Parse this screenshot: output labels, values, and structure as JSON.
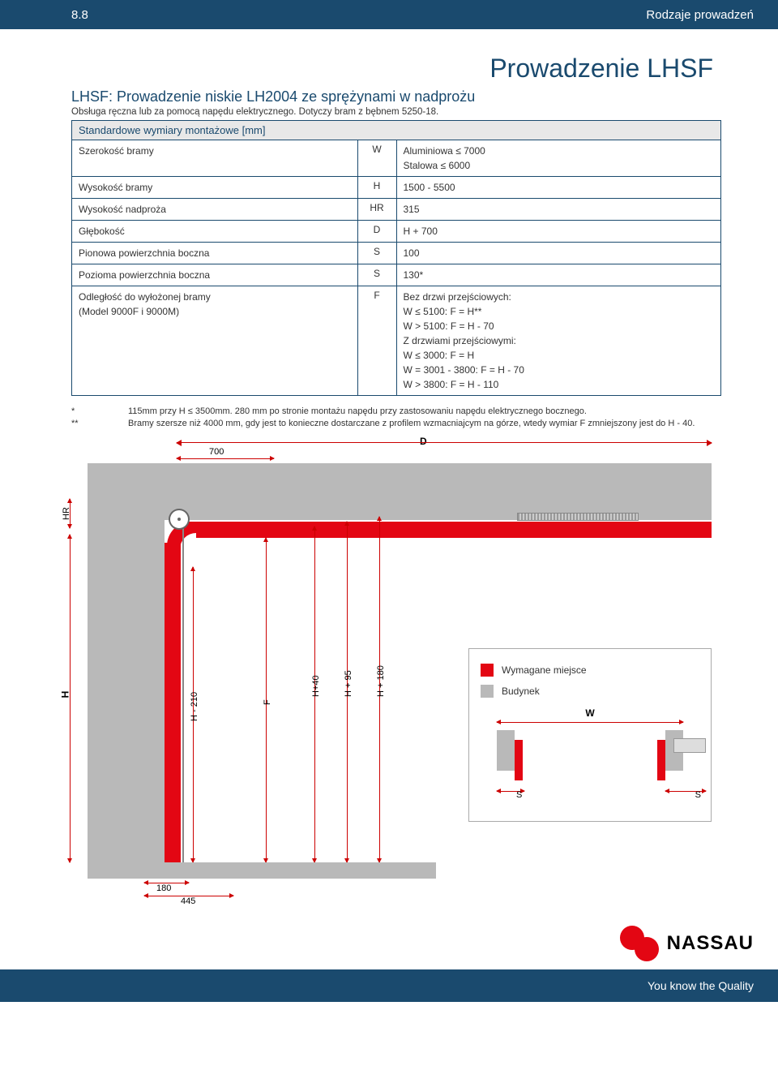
{
  "header": {
    "num": "8.8",
    "title": "Rodzaje prowadzeń"
  },
  "main_title": "Prowadzenie LHSF",
  "sub_title": "LHSF: Prowadzenie niskie LH2004 ze sprężynami w nadprożu",
  "desc": "Obsługa ręczna lub za pomocą napędu elektrycznego. Dotyczy bram z bębnem 5250-18.",
  "table_head": "Standardowe wymiary montażowe [mm]",
  "rows": [
    {
      "label": "Szerokość bramy",
      "sym": "W",
      "val": "Aluminiowa ≤ 7000\nStalowa ≤ 6000"
    },
    {
      "label": "Wysokość bramy",
      "sym": "H",
      "val": "1500 - 5500"
    },
    {
      "label": "Wysokość nadproża",
      "sym": "HR",
      "val": "315"
    },
    {
      "label": "Głębokość",
      "sym": "D",
      "val": "H + 700"
    },
    {
      "label": "Pionowa powierzchnia boczna",
      "sym": "S",
      "val": "100"
    },
    {
      "label": "Pozioma powierzchnia boczna",
      "sym": "S",
      "val": "130*"
    },
    {
      "label": "Odległość do wyłożonej bramy\n(Model 9000F i 9000M)",
      "sym": "F",
      "val": "Bez drzwi przejściowych:\nW ≤ 5100: F = H**\nW > 5100: F = H - 70\nZ drzwiami przejściowymi:\nW ≤ 3000: F = H\nW = 3001 - 3800: F = H - 70\nW > 3800: F = H - 110"
    }
  ],
  "notes": [
    {
      "ast": "*",
      "txt": "115mm przy H ≤ 3500mm. 280 mm po stronie montażu napędu przy zastosowaniu napędu elektrycznego bocznego."
    },
    {
      "ast": "**",
      "txt": "Bramy szersze niż 4000 mm, gdy jest to konieczne dostarczane z profilem wzmacniajcym na górze, wtedy wymiar F zmniejszony jest do H - 40."
    }
  ],
  "dims": {
    "D": "D",
    "d700": "700",
    "HR": "HR",
    "H": "H",
    "h210": "H - 210",
    "F": "F",
    "h40": "H+40",
    "h95": "H + 95",
    "h180": "H + 180",
    "b180": "180",
    "b445": "445",
    "W": "W",
    "S": "S"
  },
  "legend": {
    "req": "Wymagane miejsce",
    "bld": "Budynek"
  },
  "logo": "NASSAU",
  "footer": "You know the Quality",
  "colors": {
    "primary": "#1a4a6e",
    "accent": "#e30613",
    "grey": "#b9b9b9"
  }
}
